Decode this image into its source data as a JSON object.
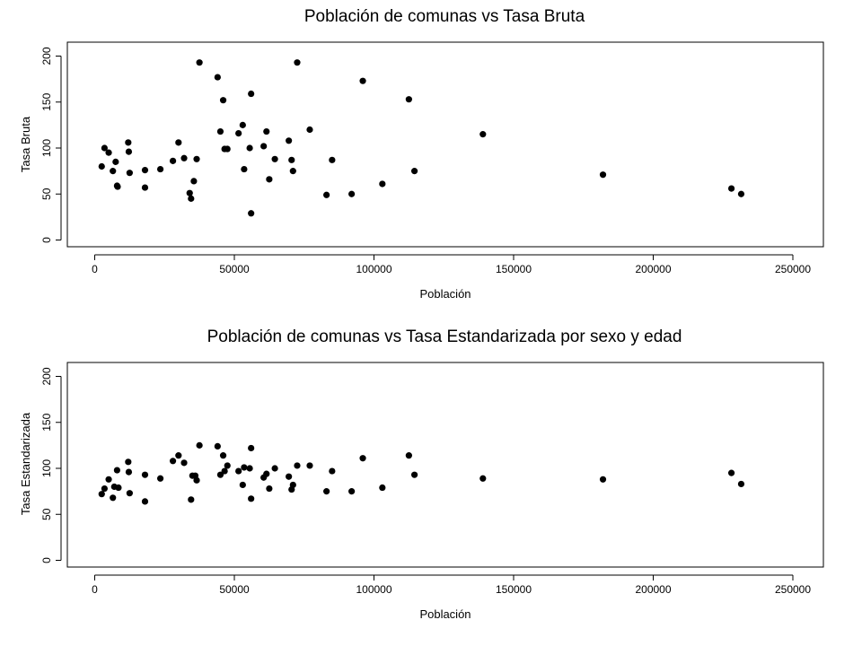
{
  "chart_data": [
    {
      "type": "scatter",
      "title": "Población de comunas vs Tasa Bruta",
      "xlabel": "Población",
      "ylabel": "Tasa Bruta",
      "xlim": [
        0,
        250000
      ],
      "ylim": [
        0,
        200
      ],
      "xticks": [
        0,
        50000,
        100000,
        150000,
        200000,
        250000
      ],
      "yticks": [
        0,
        50,
        100,
        150,
        200
      ],
      "grid": false,
      "points": [
        [
          2500,
          80
        ],
        [
          3500,
          100
        ],
        [
          5000,
          95
        ],
        [
          6500,
          75
        ],
        [
          7500,
          85
        ],
        [
          8000,
          59
        ],
        [
          8200,
          58
        ],
        [
          12000,
          106
        ],
        [
          12200,
          96
        ],
        [
          12500,
          73
        ],
        [
          18000,
          76
        ],
        [
          18000,
          57
        ],
        [
          23500,
          77
        ],
        [
          28000,
          86
        ],
        [
          30000,
          106
        ],
        [
          32000,
          89
        ],
        [
          34000,
          51
        ],
        [
          34500,
          45
        ],
        [
          35500,
          64
        ],
        [
          36500,
          88
        ],
        [
          37500,
          193
        ],
        [
          44000,
          177
        ],
        [
          45000,
          118
        ],
        [
          46000,
          152
        ],
        [
          46500,
          99
        ],
        [
          47500,
          99
        ],
        [
          51500,
          116
        ],
        [
          53000,
          125
        ],
        [
          53500,
          77
        ],
        [
          55500,
          100
        ],
        [
          56000,
          159
        ],
        [
          56000,
          29
        ],
        [
          60500,
          102
        ],
        [
          61500,
          118
        ],
        [
          62500,
          66
        ],
        [
          64500,
          88
        ],
        [
          69500,
          108
        ],
        [
          70500,
          87
        ],
        [
          71000,
          75
        ],
        [
          72500,
          193
        ],
        [
          77000,
          120
        ],
        [
          83000,
          49
        ],
        [
          85000,
          87
        ],
        [
          92000,
          50
        ],
        [
          96000,
          173
        ],
        [
          103000,
          61
        ],
        [
          112500,
          153
        ],
        [
          114500,
          75
        ],
        [
          139000,
          115
        ],
        [
          182000,
          71
        ],
        [
          228000,
          56
        ],
        [
          231500,
          50
        ]
      ]
    },
    {
      "type": "scatter",
      "title": "Población de comunas vs Tasa Estandarizada por sexo y edad",
      "xlabel": "Población",
      "ylabel": "Tasa Estandarizada",
      "xlim": [
        0,
        250000
      ],
      "ylim": [
        0,
        200
      ],
      "xticks": [
        0,
        50000,
        100000,
        150000,
        200000,
        250000
      ],
      "yticks": [
        0,
        50,
        100,
        150,
        200
      ],
      "grid": false,
      "points": [
        [
          2500,
          72
        ],
        [
          3500,
          78
        ],
        [
          5000,
          88
        ],
        [
          6500,
          68
        ],
        [
          7000,
          80
        ],
        [
          8000,
          98
        ],
        [
          8500,
          79
        ],
        [
          12000,
          107
        ],
        [
          12200,
          96
        ],
        [
          12500,
          73
        ],
        [
          18000,
          93
        ],
        [
          18000,
          64
        ],
        [
          23500,
          89
        ],
        [
          28000,
          108
        ],
        [
          30000,
          114
        ],
        [
          32000,
          106
        ],
        [
          34500,
          66
        ],
        [
          35000,
          92
        ],
        [
          36000,
          92
        ],
        [
          36500,
          87
        ],
        [
          37500,
          125
        ],
        [
          44000,
          124
        ],
        [
          45000,
          93
        ],
        [
          46000,
          114
        ],
        [
          46500,
          97
        ],
        [
          47500,
          103
        ],
        [
          51500,
          97
        ],
        [
          53000,
          82
        ],
        [
          53500,
          101
        ],
        [
          55500,
          100
        ],
        [
          56000,
          67
        ],
        [
          56000,
          122
        ],
        [
          60500,
          90
        ],
        [
          61500,
          94
        ],
        [
          62500,
          78
        ],
        [
          64500,
          100
        ],
        [
          69500,
          91
        ],
        [
          70500,
          77
        ],
        [
          71000,
          82
        ],
        [
          72500,
          103
        ],
        [
          77000,
          103
        ],
        [
          83000,
          75
        ],
        [
          85000,
          97
        ],
        [
          92000,
          75
        ],
        [
          96000,
          111
        ],
        [
          103000,
          79
        ],
        [
          112500,
          114
        ],
        [
          114500,
          93
        ],
        [
          139000,
          89
        ],
        [
          182000,
          88
        ],
        [
          228000,
          95
        ],
        [
          231500,
          83
        ]
      ]
    }
  ]
}
